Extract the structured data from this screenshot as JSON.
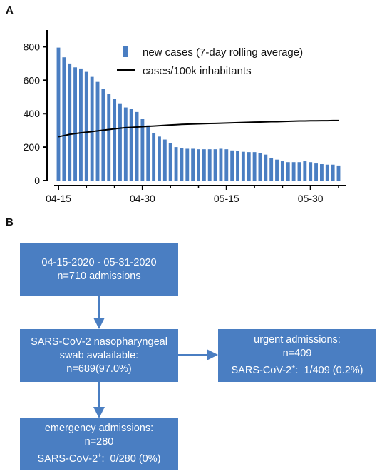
{
  "panel_a_label": "A",
  "panel_b_label": "B",
  "chart_data": {
    "type": "bar",
    "title": "",
    "xlabel": "",
    "ylabel": "",
    "ylim": [
      0,
      900
    ],
    "yticks": [
      0,
      200,
      400,
      600,
      800
    ],
    "x_tick_labels": [
      {
        "label": "04-15",
        "index": 0
      },
      {
        "label": "04-30",
        "index": 15
      },
      {
        "label": "05-15",
        "index": 30
      },
      {
        "label": "05-30",
        "index": 45
      }
    ],
    "legend_position": "top-right",
    "series": [
      {
        "name": "new cases (7-day rolling average)",
        "type": "bar",
        "color": "#4a7ec2",
        "values": [
          795,
          737,
          700,
          677,
          670,
          650,
          620,
          590,
          550,
          520,
          490,
          462,
          437,
          430,
          410,
          370,
          330,
          285,
          263,
          245,
          225,
          200,
          195,
          190,
          190,
          187,
          187,
          187,
          187,
          190,
          187,
          180,
          175,
          172,
          170,
          170,
          165,
          155,
          135,
          125,
          115,
          110,
          110,
          110,
          115,
          110,
          102,
          98,
          95,
          95,
          90
        ]
      },
      {
        "name": "cases/100k inhabitants",
        "type": "line",
        "color": "#000000",
        "values": [
          262,
          269,
          276,
          281,
          285,
          289,
          293,
          297,
          301,
          305,
          309,
          313,
          316,
          318,
          320,
          322,
          324,
          326,
          328,
          330,
          332,
          334,
          336,
          337,
          338,
          339,
          340,
          341,
          342,
          343,
          344,
          345,
          346,
          347,
          348,
          349,
          350,
          351,
          352,
          352,
          353,
          354,
          355,
          356,
          356,
          357,
          357,
          358,
          358,
          359,
          359
        ]
      }
    ]
  },
  "flowchart": {
    "box_top": {
      "line1": "04-15-2020 - 05-31-2020",
      "line2": "n=710 admissions"
    },
    "box_swab": {
      "line1": "SARS-CoV-2 nasopharyngeal",
      "line2": "swab avalailable:",
      "line3": "n=689(97.0%)"
    },
    "box_urgent": {
      "line1": "urgent admissions:",
      "line2": "n=409",
      "line3_prefix": "SARS-CoV-2",
      "line3_sup": "+",
      "line3_suffix": ":  1/409 (0.2%)"
    },
    "box_emergency": {
      "line1": "emergency admissions:",
      "line2": "n=280",
      "line3_prefix": "SARS-CoV-2",
      "line3_sup": "+",
      "line3_suffix": ":  0/280 (0%)"
    },
    "box_color": "#4a7ec2"
  }
}
